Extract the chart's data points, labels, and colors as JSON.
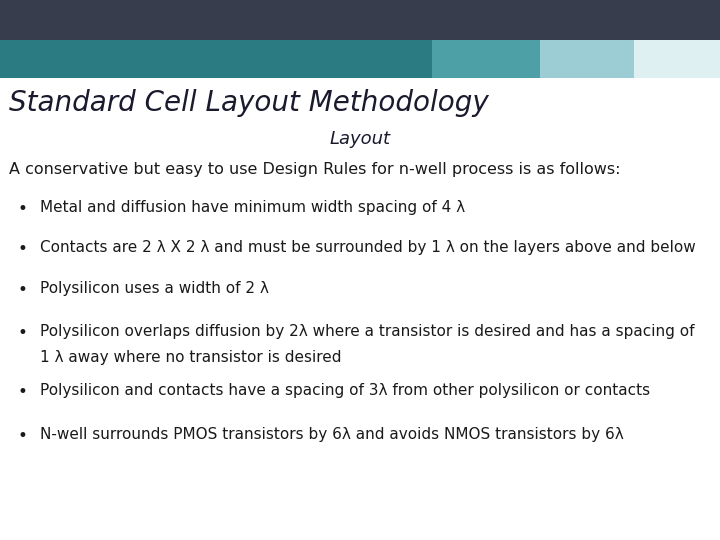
{
  "title": "Standard Cell Layout Methodology",
  "subtitle": "Layout",
  "intro": "A conservative but easy to use Design Rules for n-well process is as follows:",
  "bullets": [
    "Metal and diffusion have minimum width spacing of 4 λ",
    "Contacts are 2 λ X 2 λ and must be surrounded by 1 λ on the layers above and below",
    "Polysilicon uses a width of 2 λ",
    "Polysilicon overlaps diffusion by 2λ where a transistor is desired and has a spacing of\n1 λ away where no transistor is desired",
    "Polysilicon and contacts have a spacing of 3λ from other polysilicon or contacts",
    "N-well surrounds PMOS transistors by 6λ and avoids NMOS transistors by 6λ"
  ],
  "bg_color": "#ffffff",
  "header_dark": "#383d4d",
  "header_teal1": "#2b7c82",
  "header_teal2": "#4da0a6",
  "header_teal3": "#9dcdd4",
  "header_white_strip": "#dff0f3",
  "title_color": "#1a1a2e",
  "subtitle_color": "#1a1a2e",
  "body_color": "#1a1a1a",
  "title_fontsize": 20,
  "subtitle_fontsize": 13,
  "intro_fontsize": 11.5,
  "bullet_fontsize": 11
}
